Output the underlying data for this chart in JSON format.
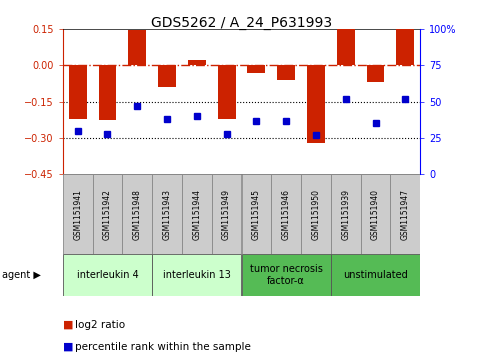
{
  "title": "GDS5262 / A_24_P631993",
  "samples": [
    "GSM1151941",
    "GSM1151942",
    "GSM1151948",
    "GSM1151943",
    "GSM1151944",
    "GSM1151949",
    "GSM1151945",
    "GSM1151946",
    "GSM1151950",
    "GSM1151939",
    "GSM1151940",
    "GSM1151947"
  ],
  "log2_ratio": [
    -0.22,
    -0.225,
    0.148,
    -0.09,
    0.02,
    -0.22,
    -0.03,
    -0.06,
    -0.32,
    0.152,
    -0.07,
    0.149
  ],
  "percentile": [
    30,
    28,
    47,
    38,
    40,
    28,
    37,
    37,
    27,
    52,
    35,
    52
  ],
  "agents": [
    {
      "label": "interleukin 4",
      "start": 0,
      "end": 3,
      "color": "#ccffcc"
    },
    {
      "label": "interleukin 13",
      "start": 3,
      "end": 6,
      "color": "#ccffcc"
    },
    {
      "label": "tumor necrosis\nfactor-α",
      "start": 6,
      "end": 9,
      "color": "#55bb55"
    },
    {
      "label": "unstimulated",
      "start": 9,
      "end": 12,
      "color": "#55bb55"
    }
  ],
  "ylim": [
    -0.45,
    0.15
  ],
  "yticks": [
    0.15,
    0.0,
    -0.15,
    -0.3,
    -0.45
  ],
  "y_right_ticks": [
    100,
    75,
    50,
    25,
    0
  ],
  "bar_color": "#cc2200",
  "dot_color": "#0000cc",
  "hline_zero_color": "#cc2200",
  "hline_dotted_vals": [
    -0.15,
    -0.3
  ],
  "bg_color": "#ffffff",
  "sample_box_color": "#cccccc",
  "figwidth": 4.83,
  "figheight": 3.63,
  "dpi": 100
}
